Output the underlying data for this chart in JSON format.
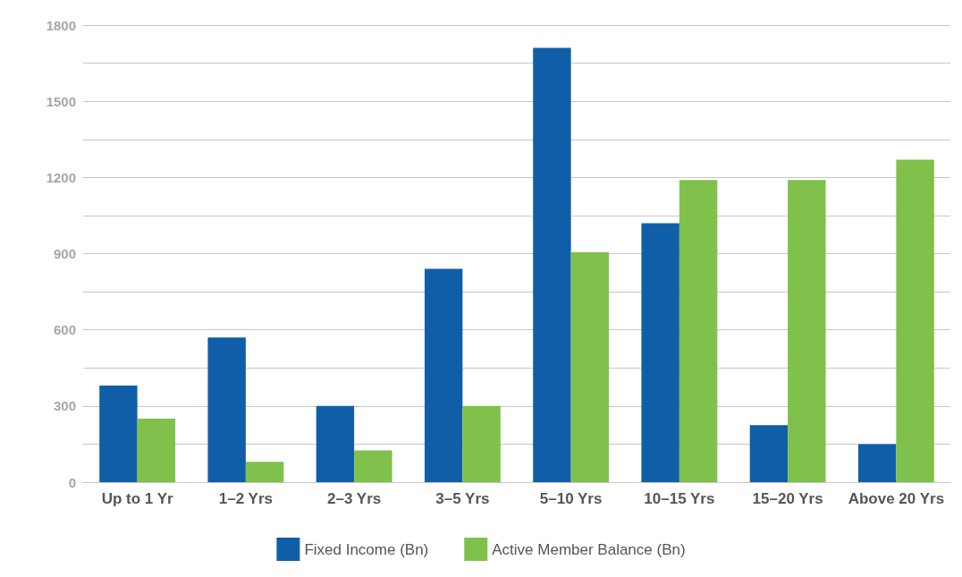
{
  "chart_data": {
    "type": "bar",
    "categories": [
      "Up to 1 Yr",
      "1–2 Yrs",
      "2–3 Yrs",
      "3–5 Yrs",
      "5–10 Yrs",
      "10–15 Yrs",
      "15–20 Yrs",
      "Above 20 Yrs"
    ],
    "series": [
      {
        "name": "Fixed Income (Bn)",
        "color": "#115ea8",
        "values": [
          380,
          570,
          300,
          840,
          1710,
          1020,
          225,
          150
        ]
      },
      {
        "name": "Active Member Balance (Bn)",
        "color": "#7fc14a",
        "values": [
          250,
          80,
          125,
          300,
          905,
          1190,
          1190,
          1270
        ]
      }
    ],
    "ylim": [
      0,
      1800
    ],
    "yticks": [
      0,
      {
        "value": 150,
        "label": null
      },
      300,
      {
        "value": 450,
        "label": null
      },
      600,
      {
        "value": 750,
        "label": null
      },
      900,
      {
        "value": 1050,
        "label": null
      },
      1200,
      {
        "value": 1350,
        "label": null
      },
      1500,
      {
        "value": 1650,
        "label": null
      },
      1800
    ],
    "grid": "y",
    "legend": "bottom"
  }
}
